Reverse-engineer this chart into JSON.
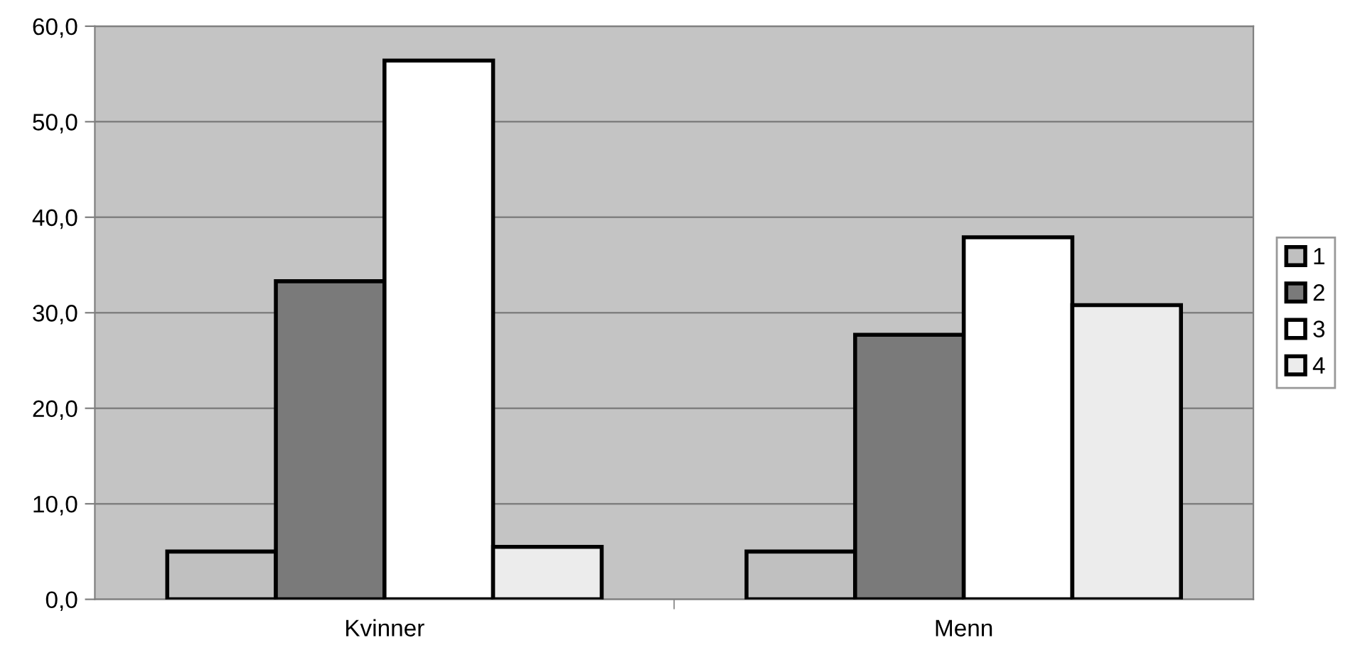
{
  "chart_data": {
    "type": "bar",
    "categories": [
      "Kvinner",
      "Menn"
    ],
    "series": [
      {
        "name": "1",
        "color": "#c0c0c0",
        "values": [
          5.0,
          5.0
        ]
      },
      {
        "name": "2",
        "color": "#7a7a7a",
        "values": [
          33.3,
          27.7
        ]
      },
      {
        "name": "3",
        "color": "#ffffff",
        "values": [
          56.4,
          37.9
        ]
      },
      {
        "name": "4",
        "color": "#ececec",
        "values": [
          5.5,
          30.8
        ]
      }
    ],
    "ylim": [
      0,
      60
    ],
    "yticks": [
      {
        "value": 0,
        "label": "0,0"
      },
      {
        "value": 10,
        "label": "10,0"
      },
      {
        "value": 20,
        "label": "20,0"
      },
      {
        "value": 30,
        "label": "30,0"
      },
      {
        "value": 40,
        "label": "40,0"
      },
      {
        "value": 50,
        "label": "50,0"
      },
      {
        "value": 60,
        "label": "60,0"
      }
    ],
    "grid": "y",
    "legend": "right"
  }
}
